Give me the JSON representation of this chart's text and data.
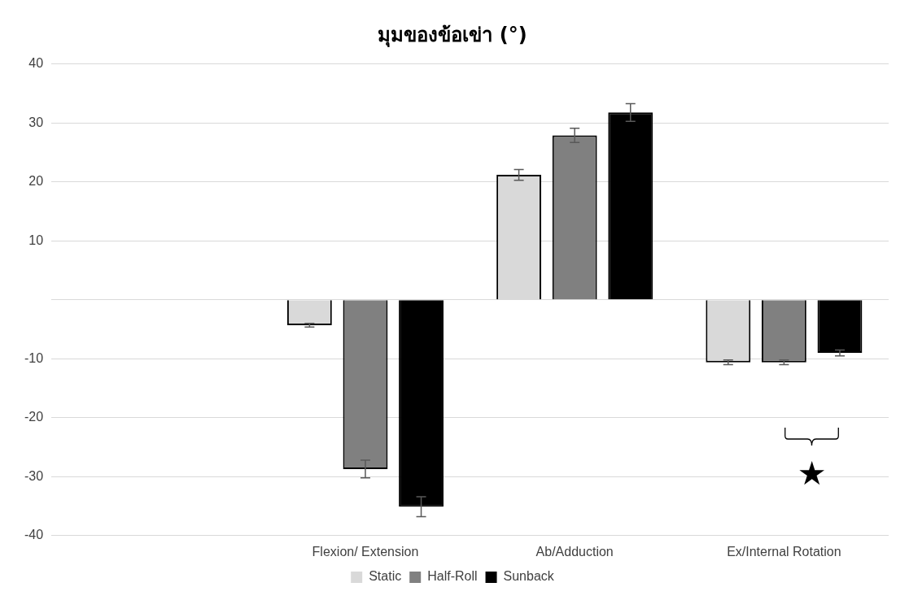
{
  "chart_data": {
    "type": "bar",
    "title": "มุมของข้อเข่า (°)",
    "categories": [
      null,
      "Flexion/ Extension",
      "Ab/Adduction",
      "Ex/Internal Rotation"
    ],
    "series": [
      {
        "name": "Static",
        "color": "#d9d9d9",
        "values": [
          null,
          -4.3,
          21.2,
          -10.6
        ],
        "errors": [
          null,
          0.3,
          0.9,
          0.4
        ]
      },
      {
        "name": "Half-Roll",
        "color": "#808080",
        "values": [
          null,
          -28.7,
          27.9,
          -10.6
        ],
        "errors": [
          null,
          1.5,
          1.2,
          0.4
        ]
      },
      {
        "name": "Sunback",
        "color": "#000000",
        "values": [
          null,
          -35.1,
          31.8,
          -9.0
        ],
        "errors": [
          null,
          1.7,
          1.5,
          0.5
        ]
      }
    ],
    "ylim": [
      -40,
      40
    ],
    "yticks": [
      -40,
      -30,
      -20,
      -10,
      {
        "value": 0,
        "label": null
      },
      10,
      20,
      30,
      40
    ],
    "grid": "y",
    "legend": "bottom",
    "annotations": [
      "★"
    ]
  }
}
